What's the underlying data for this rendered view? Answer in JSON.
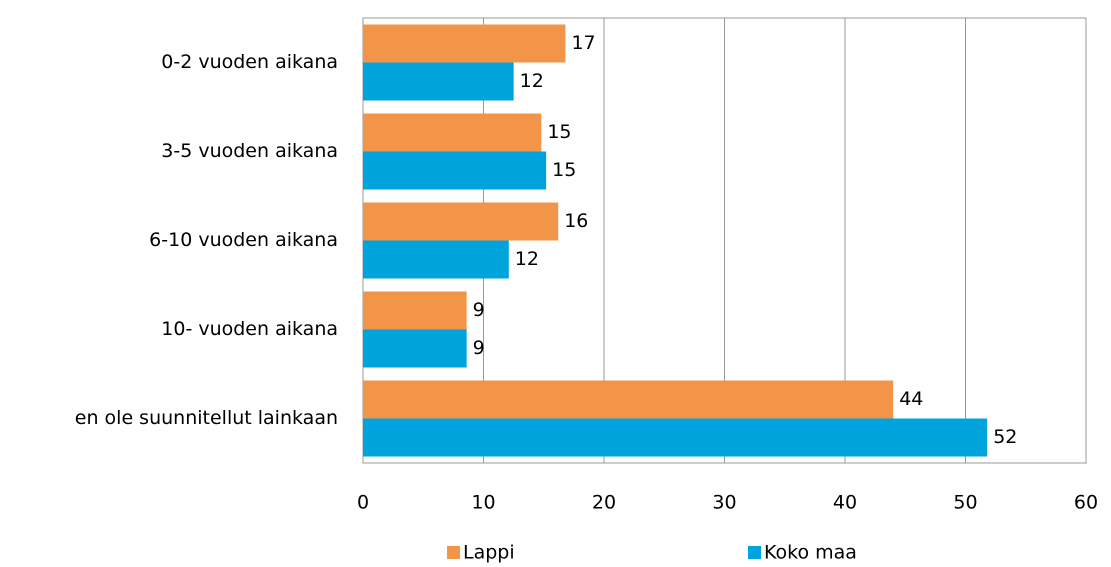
{
  "chart_data": {
    "type": "barh",
    "categories": [
      "0-2 vuoden aikana",
      "3-5 vuoden aikana",
      "6-10 vuoden aikana",
      "10- vuoden aikana",
      "en ole suunnitellut  lainkaan"
    ],
    "series": [
      {
        "name": "Lappi",
        "color": "#f29549",
        "values": [
          16.8,
          14.8,
          16.2,
          8.6,
          44.0
        ],
        "value_labels": [
          "17",
          "15",
          "16",
          "9",
          "44"
        ]
      },
      {
        "name": "Koko maa",
        "color": "#00a3dc",
        "values": [
          12.5,
          15.2,
          12.1,
          8.6,
          51.8
        ],
        "value_labels": [
          "12",
          "15",
          "12",
          "9",
          "52"
        ]
      }
    ],
    "xlim": [
      0,
      60
    ],
    "xticks": [
      0,
      10,
      20,
      30,
      40,
      50,
      60
    ],
    "grid": true,
    "legend": "bottom"
  }
}
